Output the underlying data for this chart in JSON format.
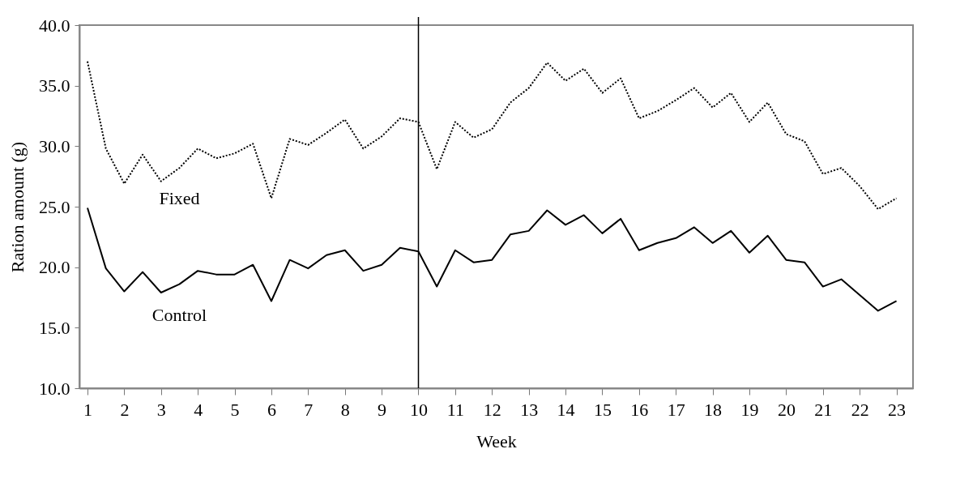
{
  "chart_data": {
    "type": "line",
    "xlabel": "Week",
    "ylabel": "Ration amount (g)",
    "x": [
      1,
      1.5,
      2,
      2.5,
      3,
      3.5,
      4,
      4.5,
      5,
      5.5,
      6,
      6.5,
      7,
      7.5,
      8,
      8.5,
      9,
      9.5,
      10,
      10.5,
      11,
      11.5,
      12,
      12.5,
      13,
      13.5,
      14,
      14.5,
      15,
      15.5,
      16,
      16.5,
      17,
      17.5,
      18,
      18.5,
      19,
      19.5,
      20,
      20.5,
      21,
      21.5,
      22,
      22.5,
      23
    ],
    "series": [
      {
        "name": "Fixed",
        "color": "#000000",
        "line_style": "dotted",
        "values": [
          37.0,
          29.8,
          26.9,
          29.3,
          27.1,
          28.2,
          29.8,
          29.0,
          29.4,
          30.2,
          25.7,
          30.6,
          30.1,
          31.1,
          32.2,
          29.8,
          30.8,
          32.3,
          32.0,
          28.1,
          32.0,
          30.7,
          31.4,
          33.6,
          34.8,
          36.9,
          35.4,
          36.4,
          34.4,
          35.6,
          32.3,
          32.9,
          33.8,
          34.8,
          33.2,
          34.4,
          32.0,
          33.6,
          31.0,
          30.4,
          27.7,
          28.2,
          26.7,
          24.8,
          25.7
        ]
      },
      {
        "name": "Control",
        "color": "#000000",
        "line_style": "solid",
        "values": [
          24.9,
          19.9,
          18.0,
          19.6,
          17.9,
          18.6,
          19.7,
          19.4,
          19.4,
          20.2,
          17.2,
          20.6,
          19.9,
          21.0,
          21.4,
          19.7,
          20.2,
          21.6,
          21.3,
          18.4,
          21.4,
          20.4,
          20.6,
          22.7,
          23.0,
          24.7,
          23.5,
          24.3,
          22.8,
          24.0,
          21.4,
          22.0,
          22.4,
          23.3,
          22.0,
          23.0,
          21.2,
          22.6,
          20.6,
          20.4,
          18.4,
          19.0,
          17.7,
          16.4,
          17.2
        ]
      }
    ],
    "xlim": [
      0.78,
      23.45
    ],
    "xticks": [
      1,
      2,
      3,
      4,
      5,
      6,
      7,
      8,
      9,
      10,
      11,
      12,
      13,
      14,
      15,
      16,
      17,
      18,
      19,
      20,
      21,
      22,
      23
    ],
    "ylim": [
      10,
      40
    ],
    "yticks": [
      {
        "value": 10,
        "label": "10.0"
      },
      {
        "value": 15,
        "label": "15.0"
      },
      {
        "value": 20,
        "label": "20.0"
      },
      {
        "value": 25,
        "label": "25.0"
      },
      {
        "value": 30,
        "label": "30.0"
      },
      {
        "value": 35,
        "label": "35.0"
      },
      {
        "value": 40,
        "label": "40.0"
      }
    ],
    "ref_lines": [
      {
        "axis": "x",
        "value": 10,
        "color": "#000000"
      }
    ],
    "grid": false,
    "marker": "none"
  }
}
